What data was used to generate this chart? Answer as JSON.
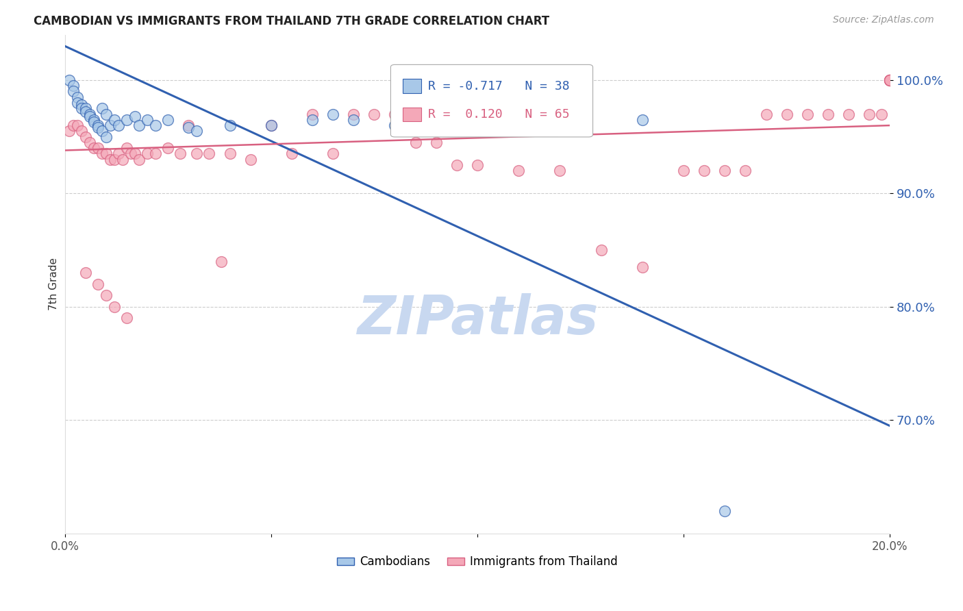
{
  "title": "CAMBODIAN VS IMMIGRANTS FROM THAILAND 7TH GRADE CORRELATION CHART",
  "source": "Source: ZipAtlas.com",
  "ylabel": "7th Grade",
  "xlim": [
    0.0,
    0.2
  ],
  "ylim": [
    0.6,
    1.04
  ],
  "yticks": [
    0.7,
    0.8,
    0.9,
    1.0
  ],
  "ytick_labels": [
    "70.0%",
    "80.0%",
    "90.0%",
    "100.0%"
  ],
  "xticks": [
    0.0,
    0.05,
    0.1,
    0.15,
    0.2
  ],
  "xtick_labels": [
    "0.0%",
    "",
    "",
    "",
    "20.0%"
  ],
  "cambodian_R": -0.717,
  "cambodian_N": 38,
  "thailand_R": 0.12,
  "thailand_N": 65,
  "cambodian_color": "#a8c8e8",
  "thailand_color": "#f4a8b8",
  "cambodian_line_color": "#3060b0",
  "thailand_line_color": "#d86080",
  "watermark_color": "#c8d8f0",
  "legend_blue_label": "Cambodians",
  "legend_pink_label": "Immigrants from Thailand",
  "cam_line_x0": 0.0,
  "cam_line_y0": 1.03,
  "cam_line_x1": 0.2,
  "cam_line_y1": 0.695,
  "thai_line_x0": 0.0,
  "thai_line_y0": 0.938,
  "thai_line_x1": 0.2,
  "thai_line_y1": 0.96,
  "cambodian_points_x": [
    0.001,
    0.002,
    0.002,
    0.003,
    0.003,
    0.004,
    0.004,
    0.005,
    0.005,
    0.006,
    0.006,
    0.007,
    0.007,
    0.008,
    0.008,
    0.009,
    0.009,
    0.01,
    0.01,
    0.011,
    0.012,
    0.013,
    0.015,
    0.017,
    0.018,
    0.02,
    0.022,
    0.025,
    0.03,
    0.032,
    0.04,
    0.05,
    0.06,
    0.065,
    0.07,
    0.08,
    0.14,
    0.16
  ],
  "cambodian_points_y": [
    1.0,
    0.995,
    0.99,
    0.985,
    0.98,
    0.978,
    0.975,
    0.975,
    0.972,
    0.97,
    0.968,
    0.965,
    0.963,
    0.96,
    0.958,
    0.975,
    0.955,
    0.97,
    0.95,
    0.96,
    0.965,
    0.96,
    0.965,
    0.968,
    0.96,
    0.965,
    0.96,
    0.965,
    0.958,
    0.955,
    0.96,
    0.96,
    0.965,
    0.97,
    0.965,
    0.96,
    0.965,
    0.62
  ],
  "thailand_points_x": [
    0.001,
    0.002,
    0.003,
    0.004,
    0.005,
    0.006,
    0.007,
    0.008,
    0.009,
    0.01,
    0.011,
    0.012,
    0.013,
    0.014,
    0.015,
    0.016,
    0.017,
    0.018,
    0.02,
    0.022,
    0.025,
    0.028,
    0.03,
    0.032,
    0.035,
    0.038,
    0.04,
    0.045,
    0.05,
    0.055,
    0.06,
    0.065,
    0.07,
    0.075,
    0.08,
    0.085,
    0.09,
    0.095,
    0.1,
    0.11,
    0.12,
    0.13,
    0.14,
    0.15,
    0.155,
    0.16,
    0.165,
    0.17,
    0.175,
    0.18,
    0.185,
    0.19,
    0.195,
    0.198,
    0.2,
    0.2,
    0.2,
    0.2,
    0.2,
    0.2,
    0.005,
    0.008,
    0.01,
    0.012,
    0.015
  ],
  "thailand_points_y": [
    0.955,
    0.96,
    0.96,
    0.955,
    0.95,
    0.945,
    0.94,
    0.94,
    0.935,
    0.935,
    0.93,
    0.93,
    0.935,
    0.93,
    0.94,
    0.935,
    0.935,
    0.93,
    0.935,
    0.935,
    0.94,
    0.935,
    0.96,
    0.935,
    0.935,
    0.84,
    0.935,
    0.93,
    0.96,
    0.935,
    0.97,
    0.935,
    0.97,
    0.97,
    0.97,
    0.945,
    0.945,
    0.925,
    0.925,
    0.92,
    0.92,
    0.85,
    0.835,
    0.92,
    0.92,
    0.92,
    0.92,
    0.97,
    0.97,
    0.97,
    0.97,
    0.97,
    0.97,
    0.97,
    1.0,
    1.0,
    1.0,
    1.0,
    1.0,
    1.0,
    0.83,
    0.82,
    0.81,
    0.8,
    0.79
  ]
}
